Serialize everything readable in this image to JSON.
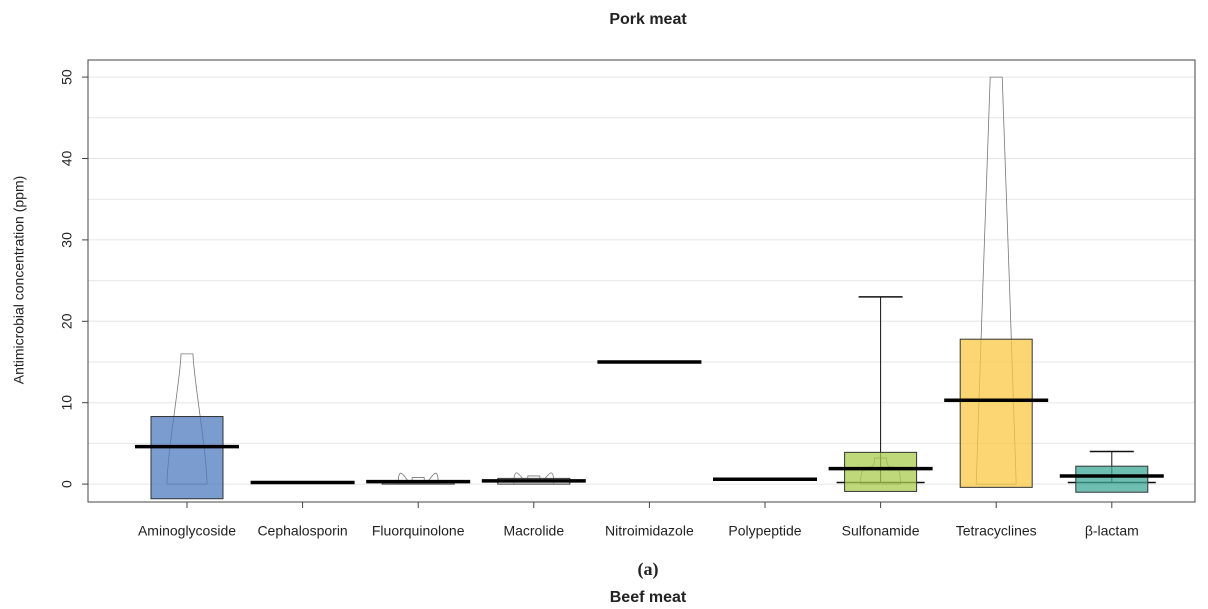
{
  "chart_data": {
    "type": "box",
    "title": "Pork meat",
    "y_label": "Antimicrobial concentration (ppm)",
    "caption": "(a)",
    "next_title": "Beef meat",
    "categories": [
      "Aminoglycoside",
      "Cephalosporin",
      "Fluorquinolone",
      "Macrolide",
      "Nitroimidazole",
      "Polypeptide",
      "Sulfonamide",
      "Tetracyclines",
      "β-lactam"
    ],
    "colors": [
      "#4f7bbf",
      null,
      null,
      null,
      null,
      null,
      "#a9cc4e",
      "#f9c843",
      "#3fa898"
    ],
    "box_low": [
      -1.8,
      null,
      0,
      0,
      null,
      null,
      -0.9,
      -0.4,
      -1.0
    ],
    "box_high": [
      8.3,
      null,
      0.4,
      0.7,
      null,
      null,
      3.9,
      17.8,
      2.2
    ],
    "center": [
      4.6,
      0.2,
      0.3,
      0.4,
      15,
      0.6,
      1.9,
      10.3,
      1.0
    ],
    "whisker_low": [
      null,
      null,
      null,
      null,
      null,
      null,
      0.2,
      null,
      0.2
    ],
    "whisker_high": [
      null,
      null,
      null,
      null,
      null,
      null,
      23,
      null,
      4
    ],
    "violin_max": [
      16,
      null,
      0.8,
      1.0,
      null,
      null,
      3.2,
      50,
      null
    ],
    "ylim": [
      -2.2,
      52.1
    ],
    "yticks": [
      0,
      10,
      20,
      30,
      40,
      50
    ],
    "grid_lines": [
      0,
      5,
      10,
      15,
      20,
      25,
      30,
      35,
      40,
      45,
      50
    ]
  }
}
